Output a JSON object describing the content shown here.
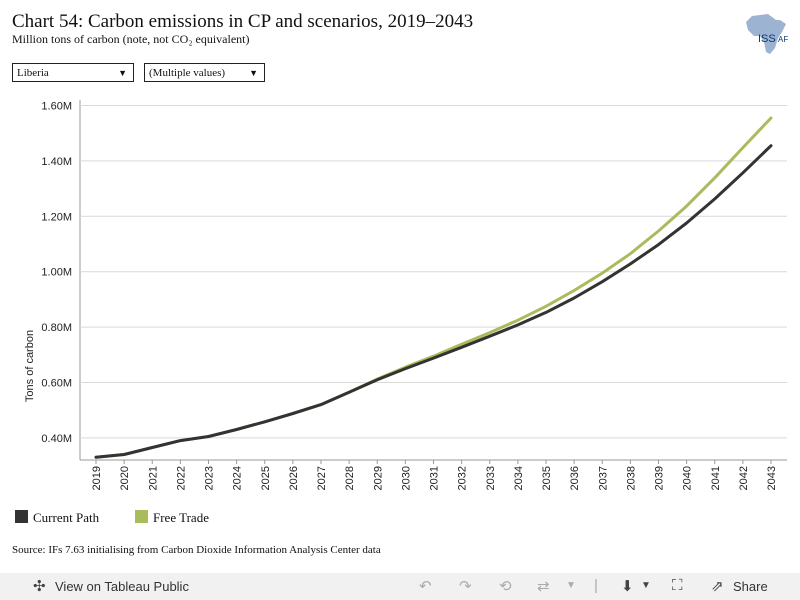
{
  "header": {
    "title": "Chart 54: Carbon emissions in CP and scenarios, 2019–2043",
    "subtitle": "Million tons of carbon (note, not CO₂ equivalent)",
    "logo_text": "ISS",
    "logo_suffix": "AF"
  },
  "filters": {
    "country": "Liberia",
    "scenario": "(Multiple values)"
  },
  "source": "Source: IFs 7.63 initialising from Carbon Dioxide Information Analysis Center data",
  "footer": {
    "view_label": "View on Tableau Public",
    "share_label": "Share"
  },
  "colors": {
    "current_path": "#333333",
    "free_trade": "#a9bc5b",
    "grid": "#d9d9d9"
  },
  "chart_data": {
    "type": "line",
    "title": "",
    "ylabel": "Tons of carbon",
    "xlabel": "",
    "x": [
      2019,
      2020,
      2021,
      2022,
      2023,
      2024,
      2025,
      2026,
      2027,
      2028,
      2029,
      2030,
      2031,
      2032,
      2033,
      2034,
      2035,
      2036,
      2037,
      2038,
      2039,
      2040,
      2041,
      2042,
      2043
    ],
    "yticks": [
      400000,
      600000,
      800000,
      1000000,
      1200000,
      1400000,
      1600000
    ],
    "ytick_labels": [
      "0.40M",
      "0.60M",
      "0.80M",
      "1.00M",
      "1.20M",
      "1.40M",
      "1.60M"
    ],
    "ylim": [
      320000,
      1620000
    ],
    "grid": true,
    "legend_position": "bottom-left",
    "series": [
      {
        "name": "Current Path",
        "color": "#333333",
        "values": [
          330000,
          340000,
          365000,
          390000,
          405000,
          430000,
          458000,
          488000,
          520000,
          565000,
          610000,
          650000,
          688000,
          727000,
          767000,
          808000,
          853000,
          905000,
          964000,
          1028000,
          1098000,
          1176000,
          1263000,
          1357000,
          1455000
        ]
      },
      {
        "name": "Free Trade",
        "color": "#a9bc5b",
        "values": [
          330000,
          340000,
          365000,
          390000,
          405000,
          430000,
          458000,
          488000,
          520000,
          565000,
          612000,
          655000,
          695000,
          738000,
          780000,
          825000,
          875000,
          932000,
          995000,
          1065000,
          1147000,
          1237000,
          1339000,
          1448000,
          1555000
        ]
      }
    ]
  }
}
